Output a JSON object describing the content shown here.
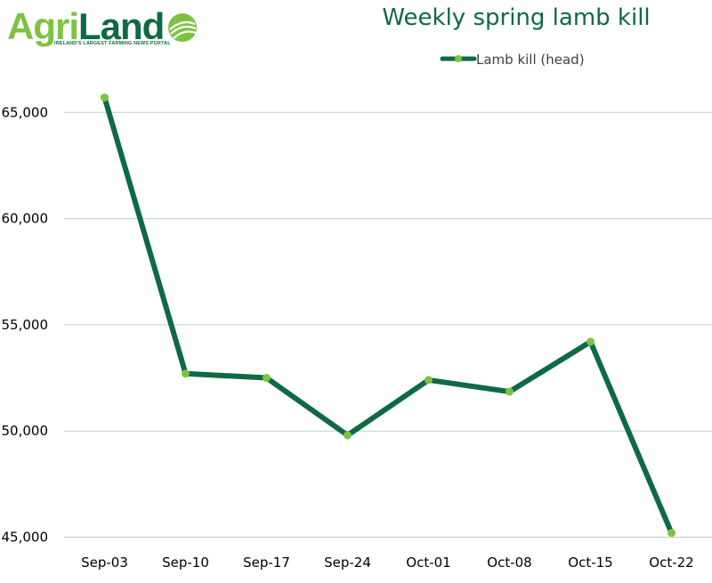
{
  "branding": {
    "logo_text_a": "Agri",
    "logo_text_b": "Land",
    "tagline": "IRELAND'S LARGEST FARMING NEWS PORTAL",
    "emblem_icon": "globe-field-icon"
  },
  "colors": {
    "line": "#0e6a45",
    "marker": "#7dc242",
    "grid": "#b7d4c6",
    "title": "#0e6a45"
  },
  "chart_data": {
    "type": "line",
    "title": "Weekly spring lamb kill",
    "xlabel": "",
    "ylabel": "",
    "categories": [
      "Sep-03",
      "Sep-10",
      "Sep-17",
      "Sep-24",
      "Oct-01",
      "Oct-08",
      "Oct-15",
      "Oct-22"
    ],
    "series": [
      {
        "name": "Lamb kill (head)",
        "values": [
          65700,
          52700,
          52500,
          49800,
          52400,
          51850,
          54200,
          45200
        ]
      }
    ],
    "ylim": [
      45000,
      65000
    ],
    "yticks": [
      45000,
      50000,
      55000,
      60000,
      65000
    ],
    "ytick_labels": [
      "45,000",
      "50,000",
      "55,000",
      "60,000",
      "65,000"
    ],
    "grid": true,
    "legend_position": "top-center"
  }
}
